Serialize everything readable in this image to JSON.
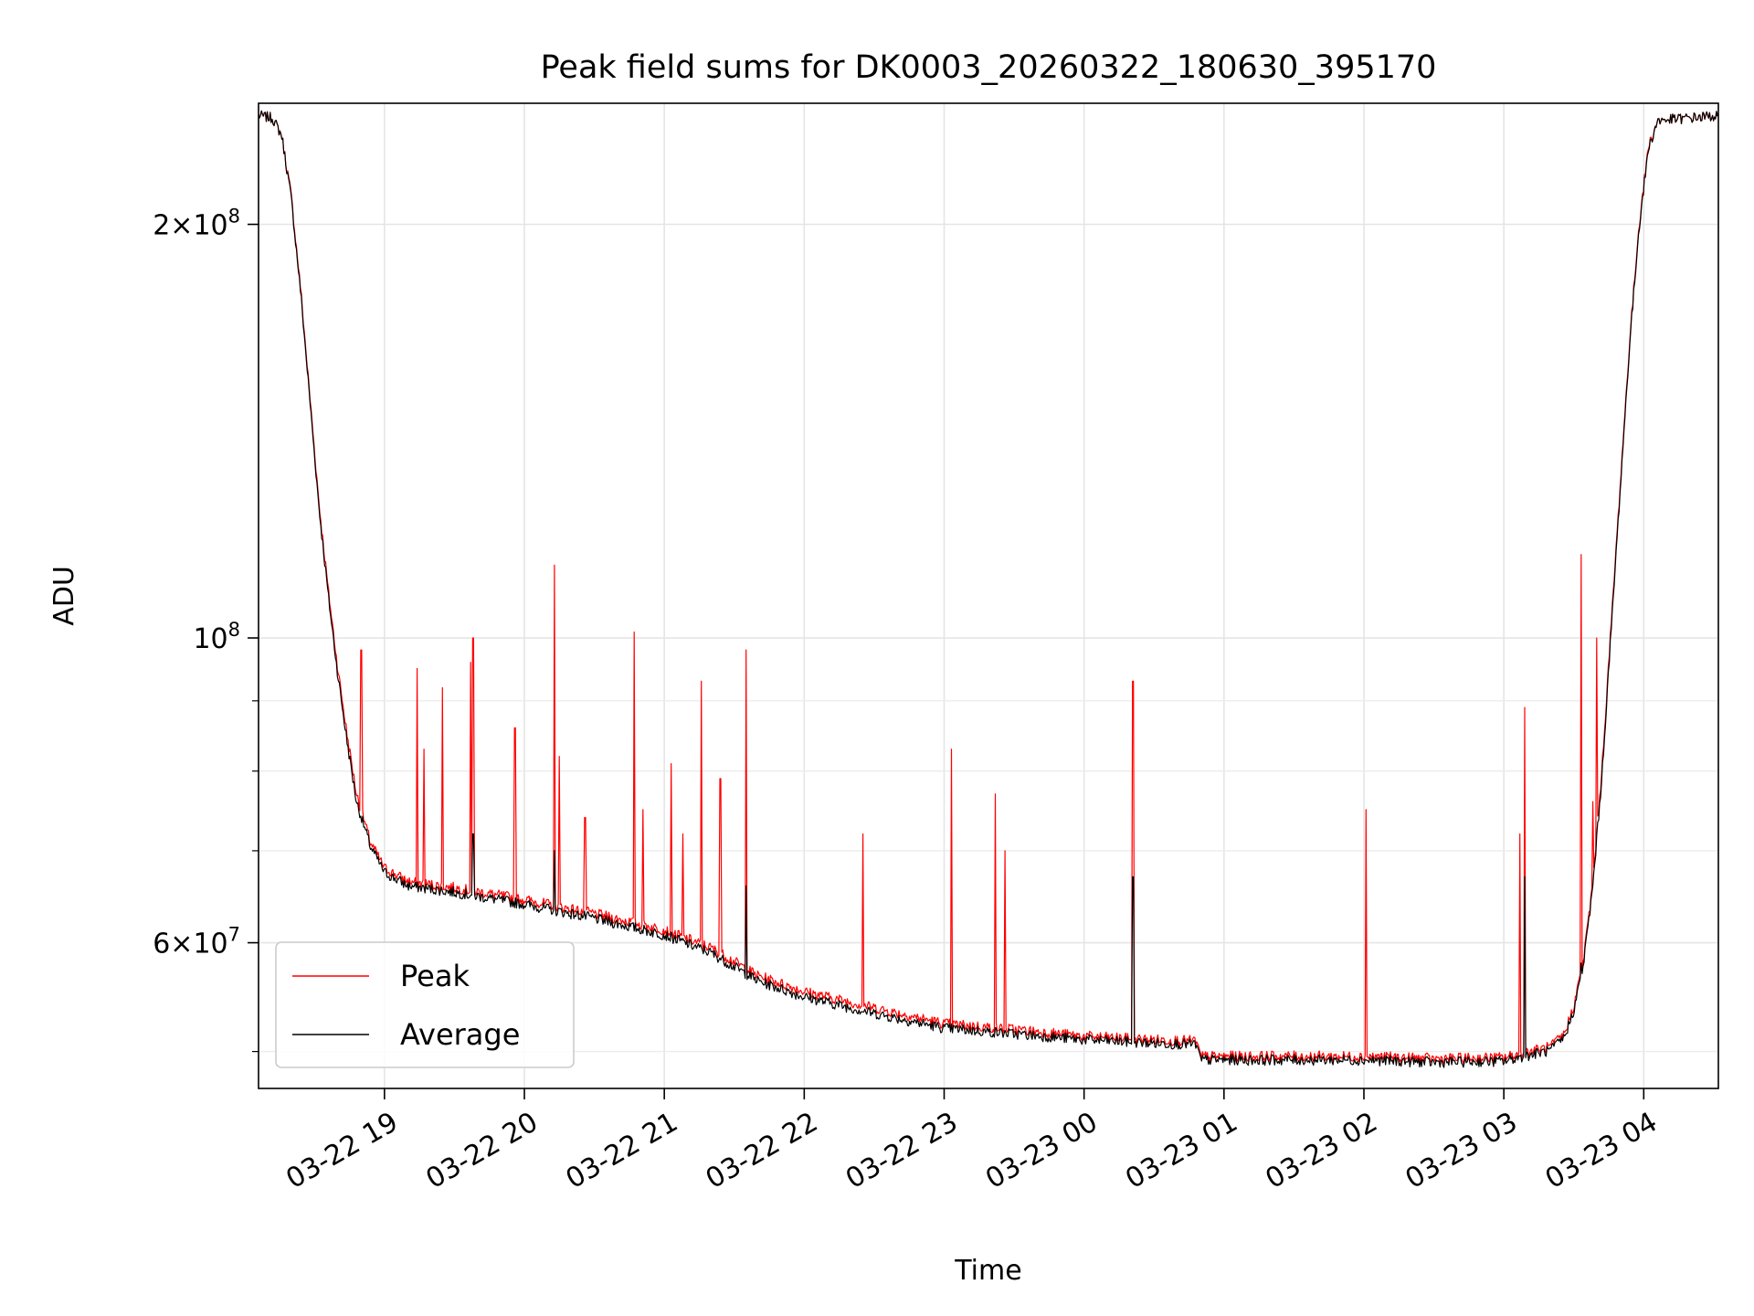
{
  "chart_data": {
    "type": "line",
    "title": "Peak field sums for DK0003_20260322_180630_395170",
    "xlabel": "Time",
    "ylabel": "ADU",
    "yscale": "log",
    "ylim": [
      47000000,
      245000000
    ],
    "xlim": [
      "2026-03-22 18:06",
      "2026-03-23 04:32"
    ],
    "grid": true,
    "legend_position": "lower-left",
    "x_ticks": [
      {
        "t": "2026-03-22 19:00",
        "label": "03-22 19"
      },
      {
        "t": "2026-03-22 20:00",
        "label": "03-22 20"
      },
      {
        "t": "2026-03-22 21:00",
        "label": "03-22 21"
      },
      {
        "t": "2026-03-22 22:00",
        "label": "03-22 22"
      },
      {
        "t": "2026-03-22 23:00",
        "label": "03-22 23"
      },
      {
        "t": "2026-03-23 00:00",
        "label": "03-23 00"
      },
      {
        "t": "2026-03-23 01:00",
        "label": "03-23 01"
      },
      {
        "t": "2026-03-23 02:00",
        "label": "03-23 02"
      },
      {
        "t": "2026-03-23 03:00",
        "label": "03-23 03"
      },
      {
        "t": "2026-03-23 04:00",
        "label": "03-23 04"
      }
    ],
    "y_ticks": [
      {
        "value": 200000000,
        "base": "2",
        "exp": "8",
        "times": true
      },
      {
        "value": 100000000,
        "base": "10",
        "exp": "8",
        "times": false
      },
      {
        "value": 60000000,
        "base": "6",
        "exp": "7",
        "times": true
      }
    ],
    "y_minor_ticks": [
      50000000,
      70000000,
      80000000,
      90000000
    ],
    "series": [
      {
        "name": "Peak",
        "color": "#ff0000",
        "baseline": [
          [
            "2026-03-22 18:06",
            240000000
          ],
          [
            "2026-03-22 18:12",
            239000000
          ],
          [
            "2026-03-22 18:16",
            232000000
          ],
          [
            "2026-03-22 18:20",
            210000000
          ],
          [
            "2026-03-22 18:24",
            180000000
          ],
          [
            "2026-03-22 18:28",
            150000000
          ],
          [
            "2026-03-22 18:32",
            125000000
          ],
          [
            "2026-03-22 18:36",
            108000000
          ],
          [
            "2026-03-22 18:40",
            95000000
          ],
          [
            "2026-03-22 18:44",
            85000000
          ],
          [
            "2026-03-22 18:48",
            77000000
          ],
          [
            "2026-03-22 18:54",
            71000000
          ],
          [
            "2026-03-22 19:00",
            68000000
          ],
          [
            "2026-03-22 19:10",
            66500000
          ],
          [
            "2026-03-22 19:30",
            65800000
          ],
          [
            "2026-03-22 20:00",
            64500000
          ],
          [
            "2026-03-22 20:30",
            63000000
          ],
          [
            "2026-03-22 21:00",
            61300000
          ],
          [
            "2026-03-22 21:20",
            59500000
          ],
          [
            "2026-03-22 21:40",
            56800000
          ],
          [
            "2026-03-22 22:00",
            55300000
          ],
          [
            "2026-03-22 22:30",
            53800000
          ],
          [
            "2026-03-22 23:00",
            52400000
          ],
          [
            "2026-03-22 23:30",
            51900000
          ],
          [
            "2026-03-23 00:00",
            51300000
          ],
          [
            "2026-03-23 00:30",
            51000000
          ],
          [
            "2026-03-23 00:48",
            50900000
          ],
          [
            "2026-03-23 00:50",
            49600000
          ],
          [
            "2026-03-23 01:30",
            49600000
          ],
          [
            "2026-03-23 02:00",
            49600000
          ],
          [
            "2026-03-23 02:30",
            49400000
          ],
          [
            "2026-03-23 03:00",
            49500000
          ],
          [
            "2026-03-23 03:20",
            50400000
          ],
          [
            "2026-03-23 03:26",
            51500000
          ],
          [
            "2026-03-23 03:30",
            54000000
          ],
          [
            "2026-03-23 03:34",
            58000000
          ],
          [
            "2026-03-23 03:38",
            66000000
          ],
          [
            "2026-03-23 03:42",
            80000000
          ],
          [
            "2026-03-23 03:46",
            102000000
          ],
          [
            "2026-03-23 03:50",
            130000000
          ],
          [
            "2026-03-23 03:54",
            165000000
          ],
          [
            "2026-03-23 03:58",
            200000000
          ],
          [
            "2026-03-23 04:02",
            228000000
          ],
          [
            "2026-03-23 04:06",
            238000000
          ],
          [
            "2026-03-23 04:32",
            240000000
          ]
        ],
        "spikes": [
          [
            "2026-03-22 18:50",
            98000000
          ],
          [
            "2026-03-22 19:14",
            95000000
          ],
          [
            "2026-03-22 19:17",
            83000000
          ],
          [
            "2026-03-22 19:25",
            92000000
          ],
          [
            "2026-03-22 19:37",
            96000000
          ],
          [
            "2026-03-22 19:38",
            100000000
          ],
          [
            "2026-03-22 19:56",
            86000000
          ],
          [
            "2026-03-22 20:13",
            113000000
          ],
          [
            "2026-03-22 20:15",
            82000000
          ],
          [
            "2026-03-22 20:26",
            74000000
          ],
          [
            "2026-03-22 20:47",
            101000000
          ],
          [
            "2026-03-22 20:51",
            75000000
          ],
          [
            "2026-03-22 21:03",
            81000000
          ],
          [
            "2026-03-22 21:08",
            72000000
          ],
          [
            "2026-03-22 21:16",
            93000000
          ],
          [
            "2026-03-22 21:24",
            79000000
          ],
          [
            "2026-03-22 21:35",
            98000000
          ],
          [
            "2026-03-22 22:25",
            72000000
          ],
          [
            "2026-03-22 23:03",
            83000000
          ],
          [
            "2026-03-22 23:22",
            77000000
          ],
          [
            "2026-03-22 23:26",
            70000000
          ],
          [
            "2026-03-23 00:21",
            93000000
          ],
          [
            "2026-03-23 02:01",
            75000000
          ],
          [
            "2026-03-23 03:09",
            89000000
          ],
          [
            "2026-03-23 03:07",
            72000000
          ],
          [
            "2026-03-23 03:33",
            115000000
          ],
          [
            "2026-03-23 03:40",
            100000000
          ],
          [
            "2026-03-23 03:38",
            76000000
          ]
        ]
      },
      {
        "name": "Average",
        "color": "#000000",
        "baseline": [
          [
            "2026-03-22 18:06",
            240000000
          ],
          [
            "2026-03-22 18:12",
            239000000
          ],
          [
            "2026-03-22 18:16",
            232000000
          ],
          [
            "2026-03-22 18:20",
            209000000
          ],
          [
            "2026-03-22 18:24",
            179000000
          ],
          [
            "2026-03-22 18:28",
            149000000
          ],
          [
            "2026-03-22 18:32",
            124000000
          ],
          [
            "2026-03-22 18:36",
            107000000
          ],
          [
            "2026-03-22 18:40",
            94000000
          ],
          [
            "2026-03-22 18:44",
            84000000
          ],
          [
            "2026-03-22 18:48",
            76000000
          ],
          [
            "2026-03-22 18:54",
            70500000
          ],
          [
            "2026-03-22 19:00",
            67500000
          ],
          [
            "2026-03-22 19:10",
            66000000
          ],
          [
            "2026-03-22 19:30",
            65300000
          ],
          [
            "2026-03-22 20:00",
            64000000
          ],
          [
            "2026-03-22 20:30",
            62500000
          ],
          [
            "2026-03-22 21:00",
            60800000
          ],
          [
            "2026-03-22 21:20",
            59000000
          ],
          [
            "2026-03-22 21:40",
            56300000
          ],
          [
            "2026-03-22 22:00",
            54800000
          ],
          [
            "2026-03-22 22:30",
            53300000
          ],
          [
            "2026-03-22 23:00",
            52000000
          ],
          [
            "2026-03-22 23:30",
            51500000
          ],
          [
            "2026-03-23 00:00",
            51000000
          ],
          [
            "2026-03-23 00:30",
            50700000
          ],
          [
            "2026-03-23 00:48",
            50600000
          ],
          [
            "2026-03-23 00:50",
            49300000
          ],
          [
            "2026-03-23 01:30",
            49300000
          ],
          [
            "2026-03-23 02:00",
            49300000
          ],
          [
            "2026-03-23 02:30",
            49100000
          ],
          [
            "2026-03-23 03:00",
            49200000
          ],
          [
            "2026-03-23 03:20",
            50100000
          ],
          [
            "2026-03-23 03:26",
            51200000
          ],
          [
            "2026-03-23 03:30",
            53600000
          ],
          [
            "2026-03-23 03:34",
            57600000
          ],
          [
            "2026-03-23 03:38",
            65500000
          ],
          [
            "2026-03-23 03:42",
            79000000
          ],
          [
            "2026-03-23 03:46",
            101000000
          ],
          [
            "2026-03-23 03:50",
            129000000
          ],
          [
            "2026-03-23 03:54",
            164000000
          ],
          [
            "2026-03-23 03:58",
            199000000
          ],
          [
            "2026-03-23 04:02",
            227000000
          ],
          [
            "2026-03-23 04:06",
            238000000
          ],
          [
            "2026-03-23 04:32",
            240000000
          ]
        ],
        "spikes": [
          [
            "2026-03-22 19:38",
            72000000
          ],
          [
            "2026-03-22 20:13",
            70000000
          ],
          [
            "2026-03-22 21:35",
            66000000
          ],
          [
            "2026-03-23 00:21",
            67000000
          ],
          [
            "2026-03-23 03:09",
            67000000
          ],
          [
            "2026-03-23 03:33",
            58000000
          ],
          [
            "2026-03-23 03:40",
            66000000
          ]
        ]
      }
    ]
  }
}
